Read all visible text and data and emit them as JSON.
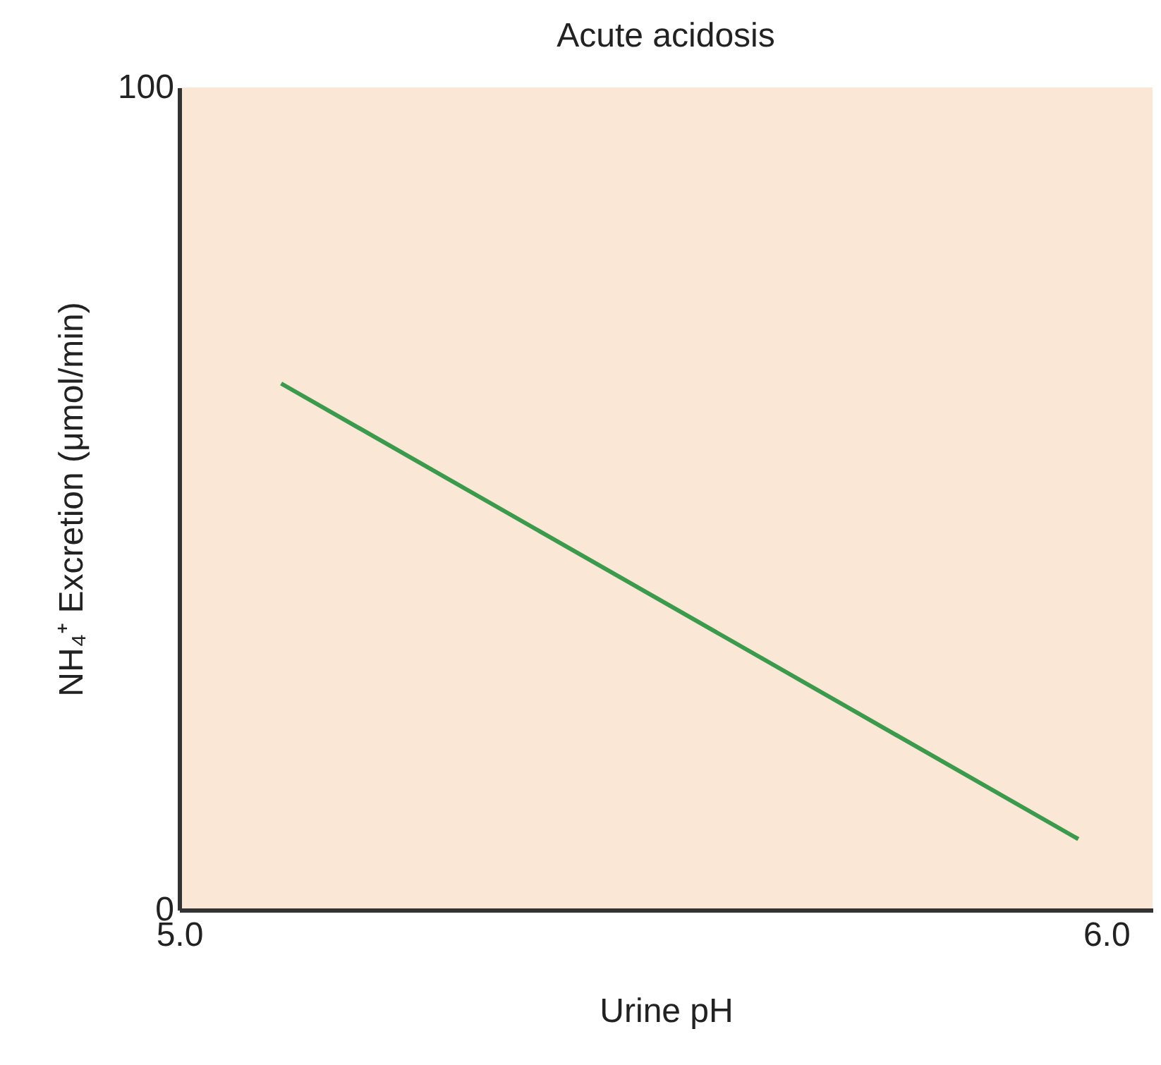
{
  "chart_data": {
    "type": "line",
    "title": "Acute acidosis",
    "xlabel": "Urine pH",
    "ylabel": "NH₄⁺ Excretion (μmol/min)",
    "x": [
      5.11,
      5.97
    ],
    "series": [
      {
        "color": "#3b9a4c",
        "values": [
          64,
          8.6
        ]
      }
    ],
    "xlim": [
      5.0,
      6.05
    ],
    "xticks": [
      {
        "value": 5.0,
        "label": "5.0"
      },
      {
        "value": 6.0,
        "label": "6.0"
      }
    ],
    "ylim": [
      0,
      100
    ],
    "yticks": [
      0,
      100
    ],
    "grid": false
  }
}
